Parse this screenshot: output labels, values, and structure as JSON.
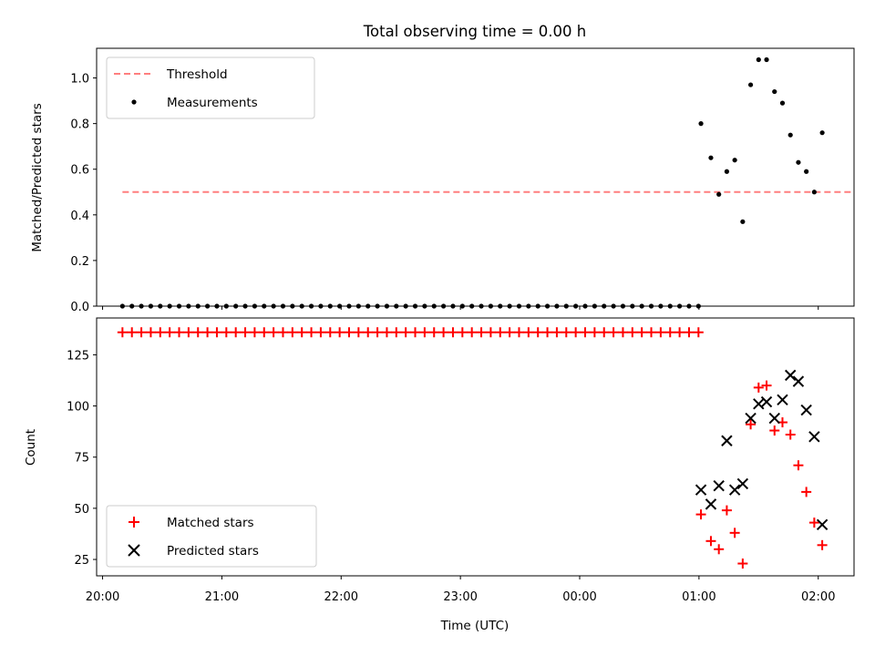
{
  "colors": {
    "threshold": "#ff7f7f",
    "measurements": "#000000",
    "matched": "#ff0000",
    "predicted": "#000000"
  },
  "chart_data": [
    {
      "type": "scatter",
      "title": "Total observing time = 0.00 h",
      "xlabel": "",
      "ylabel": "Matched/Predicted stars",
      "ylim": [
        0,
        1.13
      ],
      "yticks": [
        {
          "v": 0.0,
          "label": "0.0"
        },
        {
          "v": 0.2,
          "label": "0.2"
        },
        {
          "v": 0.4,
          "label": "0.4"
        },
        {
          "v": 0.6,
          "label": "0.6"
        },
        {
          "v": 0.8,
          "label": "0.8"
        },
        {
          "v": 1.0,
          "label": "1.0"
        }
      ],
      "legend_position": "upper-left",
      "legend": [
        "Threshold",
        "Measurements"
      ],
      "threshold": {
        "name": "Threshold",
        "y": 0.5,
        "x_start": "20:10",
        "x_end": "02:17",
        "style": "dashed"
      },
      "zero_series": {
        "start": "20:10",
        "count": 62,
        "step_min": 4.75
      },
      "series": [
        {
          "name": "Measurements",
          "points": [
            [
              "01:01",
              0.8
            ],
            [
              "01:06",
              0.65
            ],
            [
              "01:10",
              0.49
            ],
            [
              "01:14",
              0.59
            ],
            [
              "01:18",
              0.64
            ],
            [
              "01:22",
              0.37
            ],
            [
              "01:26",
              0.97
            ],
            [
              "01:30",
              1.08
            ],
            [
              "01:34",
              1.08
            ],
            [
              "01:38",
              0.94
            ],
            [
              "01:42",
              0.89
            ],
            [
              "01:46",
              0.75
            ],
            [
              "01:50",
              0.63
            ],
            [
              "01:54",
              0.59
            ],
            [
              "01:58",
              0.5
            ],
            [
              "02:02",
              0.76
            ]
          ]
        }
      ]
    },
    {
      "type": "scatter",
      "title": "",
      "xlabel": "Time (UTC)",
      "ylabel": "Count",
      "ylim": [
        17,
        143
      ],
      "yticks": [
        {
          "v": 25,
          "label": "25"
        },
        {
          "v": 50,
          "label": "50"
        },
        {
          "v": 75,
          "label": "75"
        },
        {
          "v": 100,
          "label": "100"
        },
        {
          "v": 125,
          "label": "125"
        }
      ],
      "legend_position": "lower-left",
      "legend": [
        "Matched stars",
        "Predicted stars"
      ],
      "matched_constant": {
        "y": 136,
        "start": "20:10",
        "count": 62,
        "step_min": 4.75
      },
      "series": [
        {
          "name": "Matched stars",
          "marker": "+",
          "points": [
            [
              "01:01",
              47
            ],
            [
              "01:06",
              34
            ],
            [
              "01:10",
              30
            ],
            [
              "01:14",
              49
            ],
            [
              "01:18",
              38
            ],
            [
              "01:22",
              23
            ],
            [
              "01:26",
              91
            ],
            [
              "01:30",
              109
            ],
            [
              "01:34",
              110
            ],
            [
              "01:38",
              88
            ],
            [
              "01:42",
              92
            ],
            [
              "01:46",
              86
            ],
            [
              "01:50",
              71
            ],
            [
              "01:54",
              58
            ],
            [
              "01:58",
              43
            ],
            [
              "02:02",
              32
            ]
          ]
        },
        {
          "name": "Predicted stars",
          "marker": "x",
          "points": [
            [
              "01:01",
              59
            ],
            [
              "01:06",
              52
            ],
            [
              "01:10",
              61
            ],
            [
              "01:14",
              83
            ],
            [
              "01:18",
              59
            ],
            [
              "01:22",
              62
            ],
            [
              "01:26",
              94
            ],
            [
              "01:30",
              101
            ],
            [
              "01:34",
              102
            ],
            [
              "01:38",
              94
            ],
            [
              "01:42",
              103
            ],
            [
              "01:46",
              115
            ],
            [
              "01:50",
              112
            ],
            [
              "01:54",
              98
            ],
            [
              "01:58",
              85
            ],
            [
              "02:02",
              42
            ]
          ]
        }
      ]
    }
  ],
  "xaxis": {
    "start": "20:00",
    "range_min": [
      -3,
      378
    ],
    "ticks": [
      {
        "min": 0,
        "label": "20:00"
      },
      {
        "min": 60,
        "label": "21:00"
      },
      {
        "min": 120,
        "label": "22:00"
      },
      {
        "min": 180,
        "label": "23:00"
      },
      {
        "min": 240,
        "label": "00:00"
      },
      {
        "min": 300,
        "label": "01:00"
      },
      {
        "min": 360,
        "label": "02:00"
      }
    ]
  }
}
